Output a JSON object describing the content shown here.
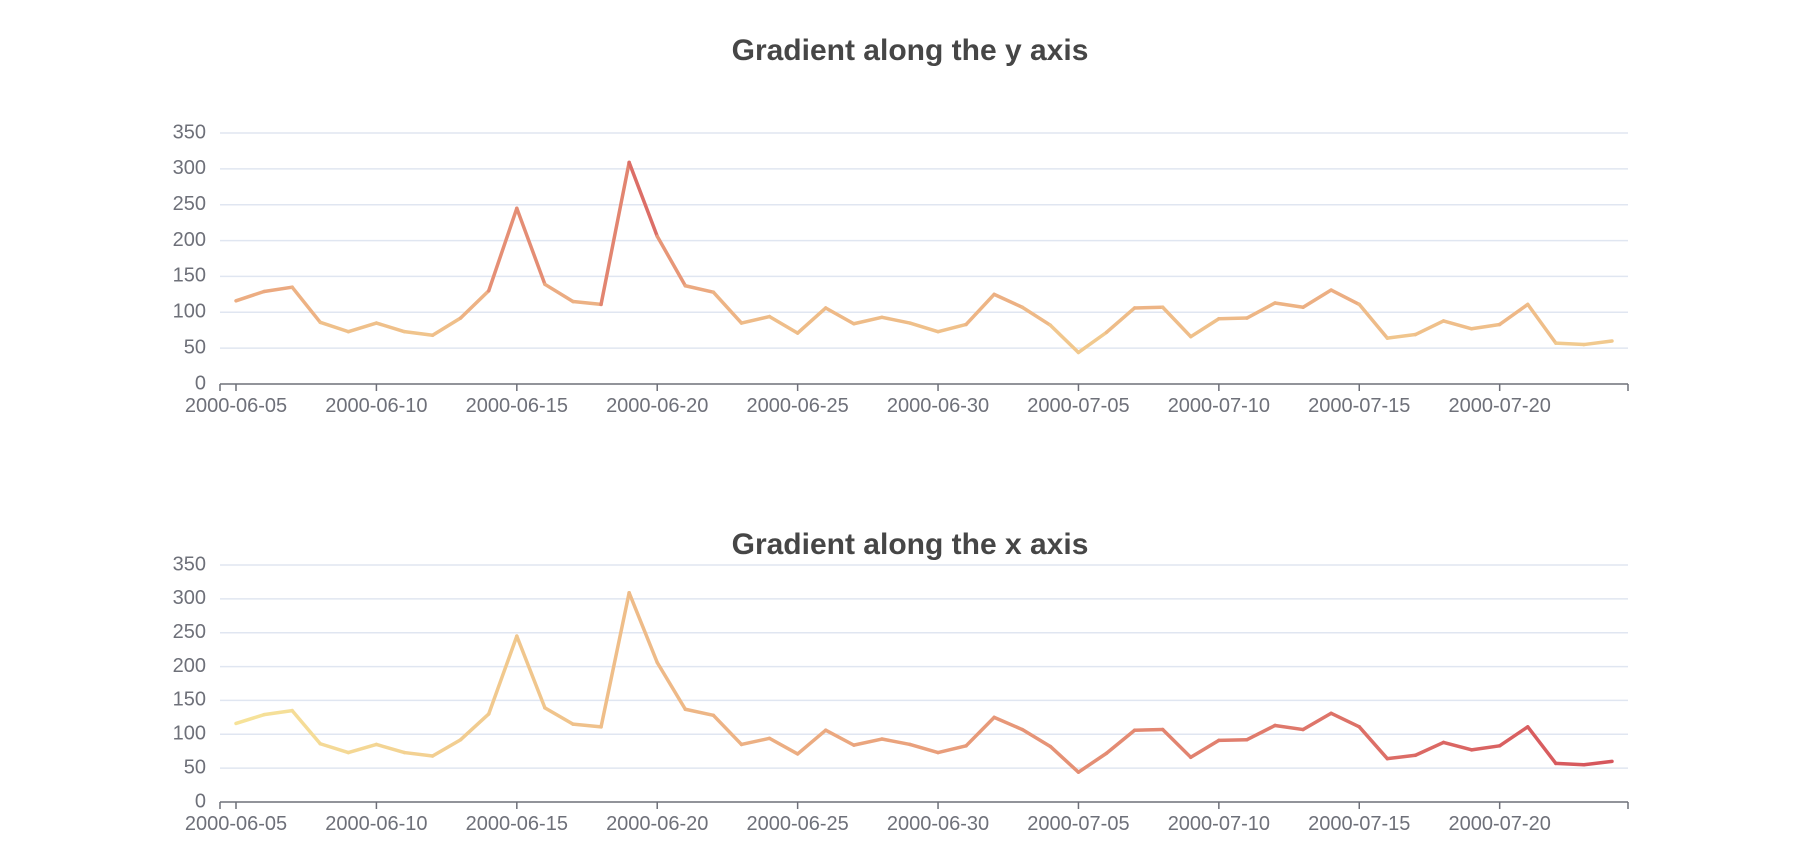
{
  "colors": {
    "low": "#f6e39a",
    "mid": "#e9a07c",
    "high": "#d6555c",
    "text": "#464646",
    "axis": "#6e7079",
    "grid": "#e0e6f1"
  },
  "chart_data": [
    {
      "type": "line",
      "title": "Gradient along the y axis",
      "gradient": "y-value",
      "xlabel": "",
      "ylabel": "",
      "ylim": [
        0,
        350
      ],
      "yticks": [
        0,
        50,
        100,
        150,
        200,
        250,
        300,
        350
      ],
      "xticks": [
        "2000-06-05",
        "2000-06-10",
        "2000-06-15",
        "2000-06-20",
        "2000-06-25",
        "2000-06-30",
        "2000-07-05",
        "2000-07-10",
        "2000-07-15",
        "2000-07-20"
      ],
      "x": [
        "2000-06-05",
        "2000-06-06",
        "2000-06-07",
        "2000-06-08",
        "2000-06-09",
        "2000-06-10",
        "2000-06-11",
        "2000-06-12",
        "2000-06-13",
        "2000-06-14",
        "2000-06-15",
        "2000-06-16",
        "2000-06-17",
        "2000-06-18",
        "2000-06-19",
        "2000-06-20",
        "2000-06-21",
        "2000-06-22",
        "2000-06-23",
        "2000-06-24",
        "2000-06-25",
        "2000-06-26",
        "2000-06-27",
        "2000-06-28",
        "2000-06-29",
        "2000-06-30",
        "2000-07-01",
        "2000-07-02",
        "2000-07-03",
        "2000-07-04",
        "2000-07-05",
        "2000-07-06",
        "2000-07-07",
        "2000-07-08",
        "2000-07-09",
        "2000-07-10",
        "2000-07-11",
        "2000-07-12",
        "2000-07-13",
        "2000-07-14",
        "2000-07-15",
        "2000-07-16",
        "2000-07-17",
        "2000-07-18",
        "2000-07-19",
        "2000-07-20",
        "2000-07-21",
        "2000-07-22",
        "2000-07-23",
        "2000-07-24"
      ],
      "values": [
        116,
        129,
        135,
        86,
        73,
        85,
        73,
        68,
        92,
        130,
        245,
        139,
        115,
        111,
        309,
        206,
        137,
        128,
        85,
        94,
        71,
        106,
        84,
        93,
        85,
        73,
        83,
        125,
        107,
        82,
        44,
        72,
        106,
        107,
        66,
        91,
        92,
        113,
        107,
        131,
        111,
        64,
        69,
        88,
        77,
        83,
        111,
        57,
        55,
        60
      ]
    },
    {
      "type": "line",
      "title": "Gradient along the x axis",
      "gradient": "x-index",
      "xlabel": "",
      "ylabel": "",
      "ylim": [
        0,
        350
      ],
      "yticks": [
        0,
        50,
        100,
        150,
        200,
        250,
        300,
        350
      ],
      "xticks": [
        "2000-06-05",
        "2000-06-10",
        "2000-06-15",
        "2000-06-20",
        "2000-06-25",
        "2000-06-30",
        "2000-07-05",
        "2000-07-10",
        "2000-07-15",
        "2000-07-20"
      ],
      "x": [
        "2000-06-05",
        "2000-06-06",
        "2000-06-07",
        "2000-06-08",
        "2000-06-09",
        "2000-06-10",
        "2000-06-11",
        "2000-06-12",
        "2000-06-13",
        "2000-06-14",
        "2000-06-15",
        "2000-06-16",
        "2000-06-17",
        "2000-06-18",
        "2000-06-19",
        "2000-06-20",
        "2000-06-21",
        "2000-06-22",
        "2000-06-23",
        "2000-06-24",
        "2000-06-25",
        "2000-06-26",
        "2000-06-27",
        "2000-06-28",
        "2000-06-29",
        "2000-06-30",
        "2000-07-01",
        "2000-07-02",
        "2000-07-03",
        "2000-07-04",
        "2000-07-05",
        "2000-07-06",
        "2000-07-07",
        "2000-07-08",
        "2000-07-09",
        "2000-07-10",
        "2000-07-11",
        "2000-07-12",
        "2000-07-13",
        "2000-07-14",
        "2000-07-15",
        "2000-07-16",
        "2000-07-17",
        "2000-07-18",
        "2000-07-19",
        "2000-07-20",
        "2000-07-21",
        "2000-07-22",
        "2000-07-23",
        "2000-07-24"
      ],
      "values": [
        116,
        129,
        135,
        86,
        73,
        85,
        73,
        68,
        92,
        130,
        245,
        139,
        115,
        111,
        309,
        206,
        137,
        128,
        85,
        94,
        71,
        106,
        84,
        93,
        85,
        73,
        83,
        125,
        107,
        82,
        44,
        72,
        106,
        107,
        66,
        91,
        92,
        113,
        107,
        131,
        111,
        64,
        69,
        88,
        77,
        83,
        111,
        57,
        55,
        60
      ]
    }
  ]
}
